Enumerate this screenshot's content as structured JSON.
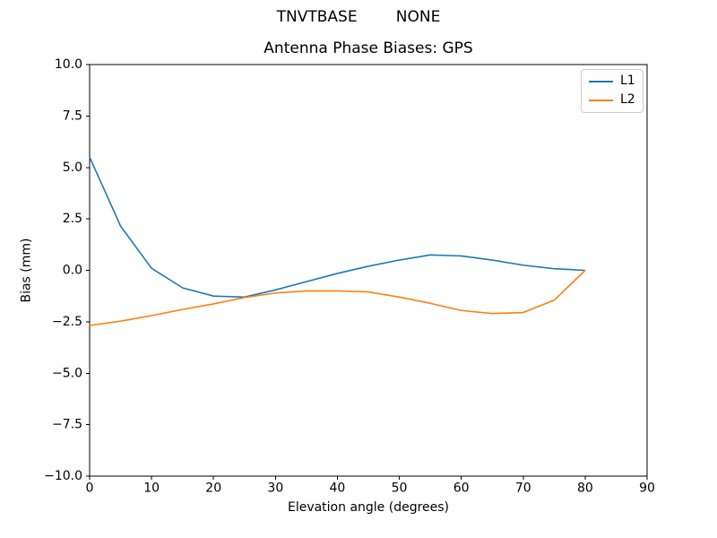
{
  "chart_data": {
    "type": "line",
    "suptitle": "TNVTBASE        NONE",
    "title": "Antenna Phase Biases: GPS",
    "xlabel": "Elevation angle (degrees)",
    "ylabel": "Bias (mm)",
    "xlim": [
      0,
      90
    ],
    "ylim": [
      -10,
      10
    ],
    "grid": false,
    "xticks": {
      "values": [
        0,
        10,
        20,
        30,
        40,
        50,
        60,
        70,
        80,
        90
      ],
      "labels": [
        "0",
        "10",
        "20",
        "30",
        "40",
        "50",
        "60",
        "70",
        "80",
        "90"
      ]
    },
    "yticks": {
      "values": [
        -10,
        -7.5,
        -5,
        -2.5,
        0,
        2.5,
        5,
        7.5,
        10
      ],
      "labels": [
        "−10.0",
        "−7.5",
        "−5.0",
        "−2.5",
        "0.0",
        "2.5",
        "5.0",
        "7.5",
        "10.0"
      ]
    },
    "x": [
      0,
      5,
      10,
      15,
      20,
      25,
      30,
      35,
      40,
      45,
      50,
      55,
      60,
      65,
      70,
      75,
      80
    ],
    "series": [
      {
        "name": "L1",
        "color": "#1f77b4",
        "values": [
          5.5,
          2.15,
          0.1,
          -0.85,
          -1.25,
          -1.3,
          -0.95,
          -0.55,
          -0.15,
          0.2,
          0.5,
          0.75,
          0.7,
          0.5,
          0.25,
          0.08,
          0.0
        ]
      },
      {
        "name": "L2",
        "color": "#ff7f0e",
        "values": [
          -2.68,
          -2.47,
          -2.2,
          -1.9,
          -1.63,
          -1.32,
          -1.1,
          -1.0,
          -1.0,
          -1.05,
          -1.3,
          -1.6,
          -1.95,
          -2.1,
          -2.05,
          -1.45,
          0.0
        ]
      }
    ],
    "legend": {
      "position": "upper right"
    }
  }
}
